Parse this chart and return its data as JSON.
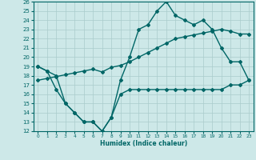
{
  "xlabel": "Humidex (Indice chaleur)",
  "bg_color": "#cde8e8",
  "grid_color": "#aacccc",
  "line_color": "#006666",
  "ylim": [
    12,
    26
  ],
  "xlim": [
    -0.5,
    23.5
  ],
  "yticks": [
    12,
    13,
    14,
    15,
    16,
    17,
    18,
    19,
    20,
    21,
    22,
    23,
    24,
    25,
    26
  ],
  "xticks": [
    0,
    1,
    2,
    3,
    4,
    5,
    6,
    7,
    8,
    9,
    10,
    11,
    12,
    13,
    14,
    15,
    16,
    17,
    18,
    19,
    20,
    21,
    22,
    23
  ],
  "line1_x": [
    0,
    1,
    2,
    3,
    4,
    5,
    6,
    7,
    8,
    9,
    10,
    11,
    12,
    13,
    14,
    15,
    16,
    17,
    18,
    19,
    20,
    21,
    22,
    23
  ],
  "line1_y": [
    19,
    18.5,
    16.5,
    15,
    14,
    13,
    13,
    12,
    13.5,
    17.5,
    20,
    23,
    23.5,
    25,
    26,
    24.5,
    24,
    23.5,
    24,
    23,
    21,
    19.5,
    19.5,
    17.5
  ],
  "line2_x": [
    0,
    1,
    2,
    3,
    4,
    5,
    6,
    7,
    8,
    9,
    10,
    11,
    12,
    13,
    14,
    15,
    16,
    17,
    18,
    19,
    20,
    21,
    22,
    23
  ],
  "line2_y": [
    17.5,
    17.7,
    17.9,
    18.1,
    18.3,
    18.5,
    18.7,
    18.4,
    18.9,
    19.1,
    19.5,
    20.0,
    20.5,
    21.0,
    21.5,
    22.0,
    22.2,
    22.4,
    22.6,
    22.8,
    23.0,
    22.8,
    22.5,
    22.5
  ],
  "line3_x": [
    0,
    1,
    2,
    3,
    4,
    5,
    6,
    7,
    8,
    9,
    10,
    11,
    12,
    13,
    14,
    15,
    16,
    17,
    18,
    19,
    20,
    21,
    22,
    23
  ],
  "line3_y": [
    19,
    18.5,
    18,
    15,
    14,
    13,
    13,
    12,
    13.5,
    16,
    16.5,
    16.5,
    16.5,
    16.5,
    16.5,
    16.5,
    16.5,
    16.5,
    16.5,
    16.5,
    16.5,
    17,
    17,
    17.5
  ]
}
